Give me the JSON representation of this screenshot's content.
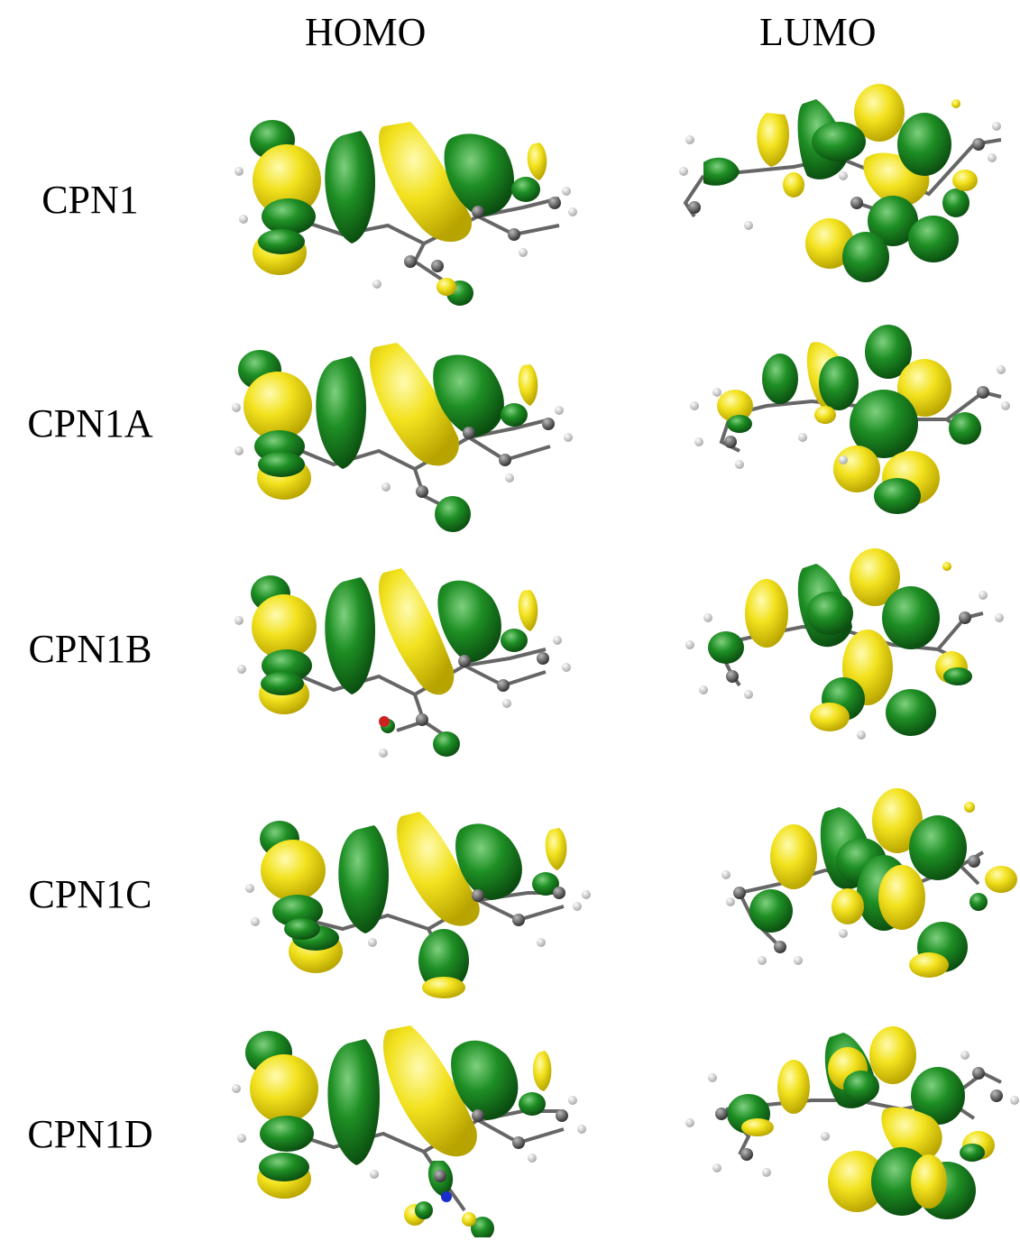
{
  "headers": {
    "homo": "HOMO",
    "lumo": "LUMO"
  },
  "rows": [
    {
      "label": "CPN1"
    },
    {
      "label": "CPN1A"
    },
    {
      "label": "CPN1B"
    },
    {
      "label": "CPN1C"
    },
    {
      "label": "CPN1D"
    }
  ],
  "colors": {
    "positive_lobe": "#f2e21e",
    "negative_lobe": "#1e8f24",
    "carbon": "#555555",
    "hydrogen": "#dddddd",
    "bond": "#666666",
    "oxygen": "#cc2222",
    "nitrogen": "#1a2ecc"
  }
}
